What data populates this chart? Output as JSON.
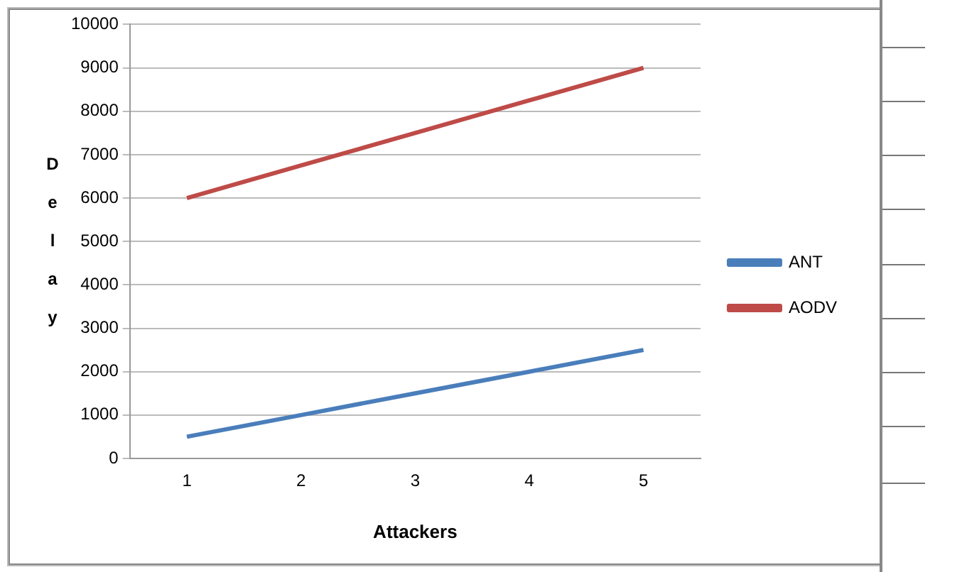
{
  "chart_data": {
    "type": "line",
    "xlabel": "Attackers",
    "ylabel": "Delay",
    "categories": [
      "1",
      "2",
      "3",
      "4",
      "5"
    ],
    "series": [
      {
        "name": "ANT",
        "color": "#4a7ebb",
        "values": [
          500,
          1000,
          1500,
          2000,
          2500
        ]
      },
      {
        "name": "AODV",
        "color": "#be4b48",
        "values": [
          6000,
          6750,
          7500,
          8250,
          9000
        ]
      }
    ],
    "ylim": [
      0,
      10000
    ],
    "yticks": [
      0,
      1000,
      2000,
      3000,
      4000,
      5000,
      6000,
      7000,
      8000,
      9000,
      10000
    ],
    "grid": "y",
    "legend": "right",
    "marker": "none",
    "line_style": "solid"
  }
}
